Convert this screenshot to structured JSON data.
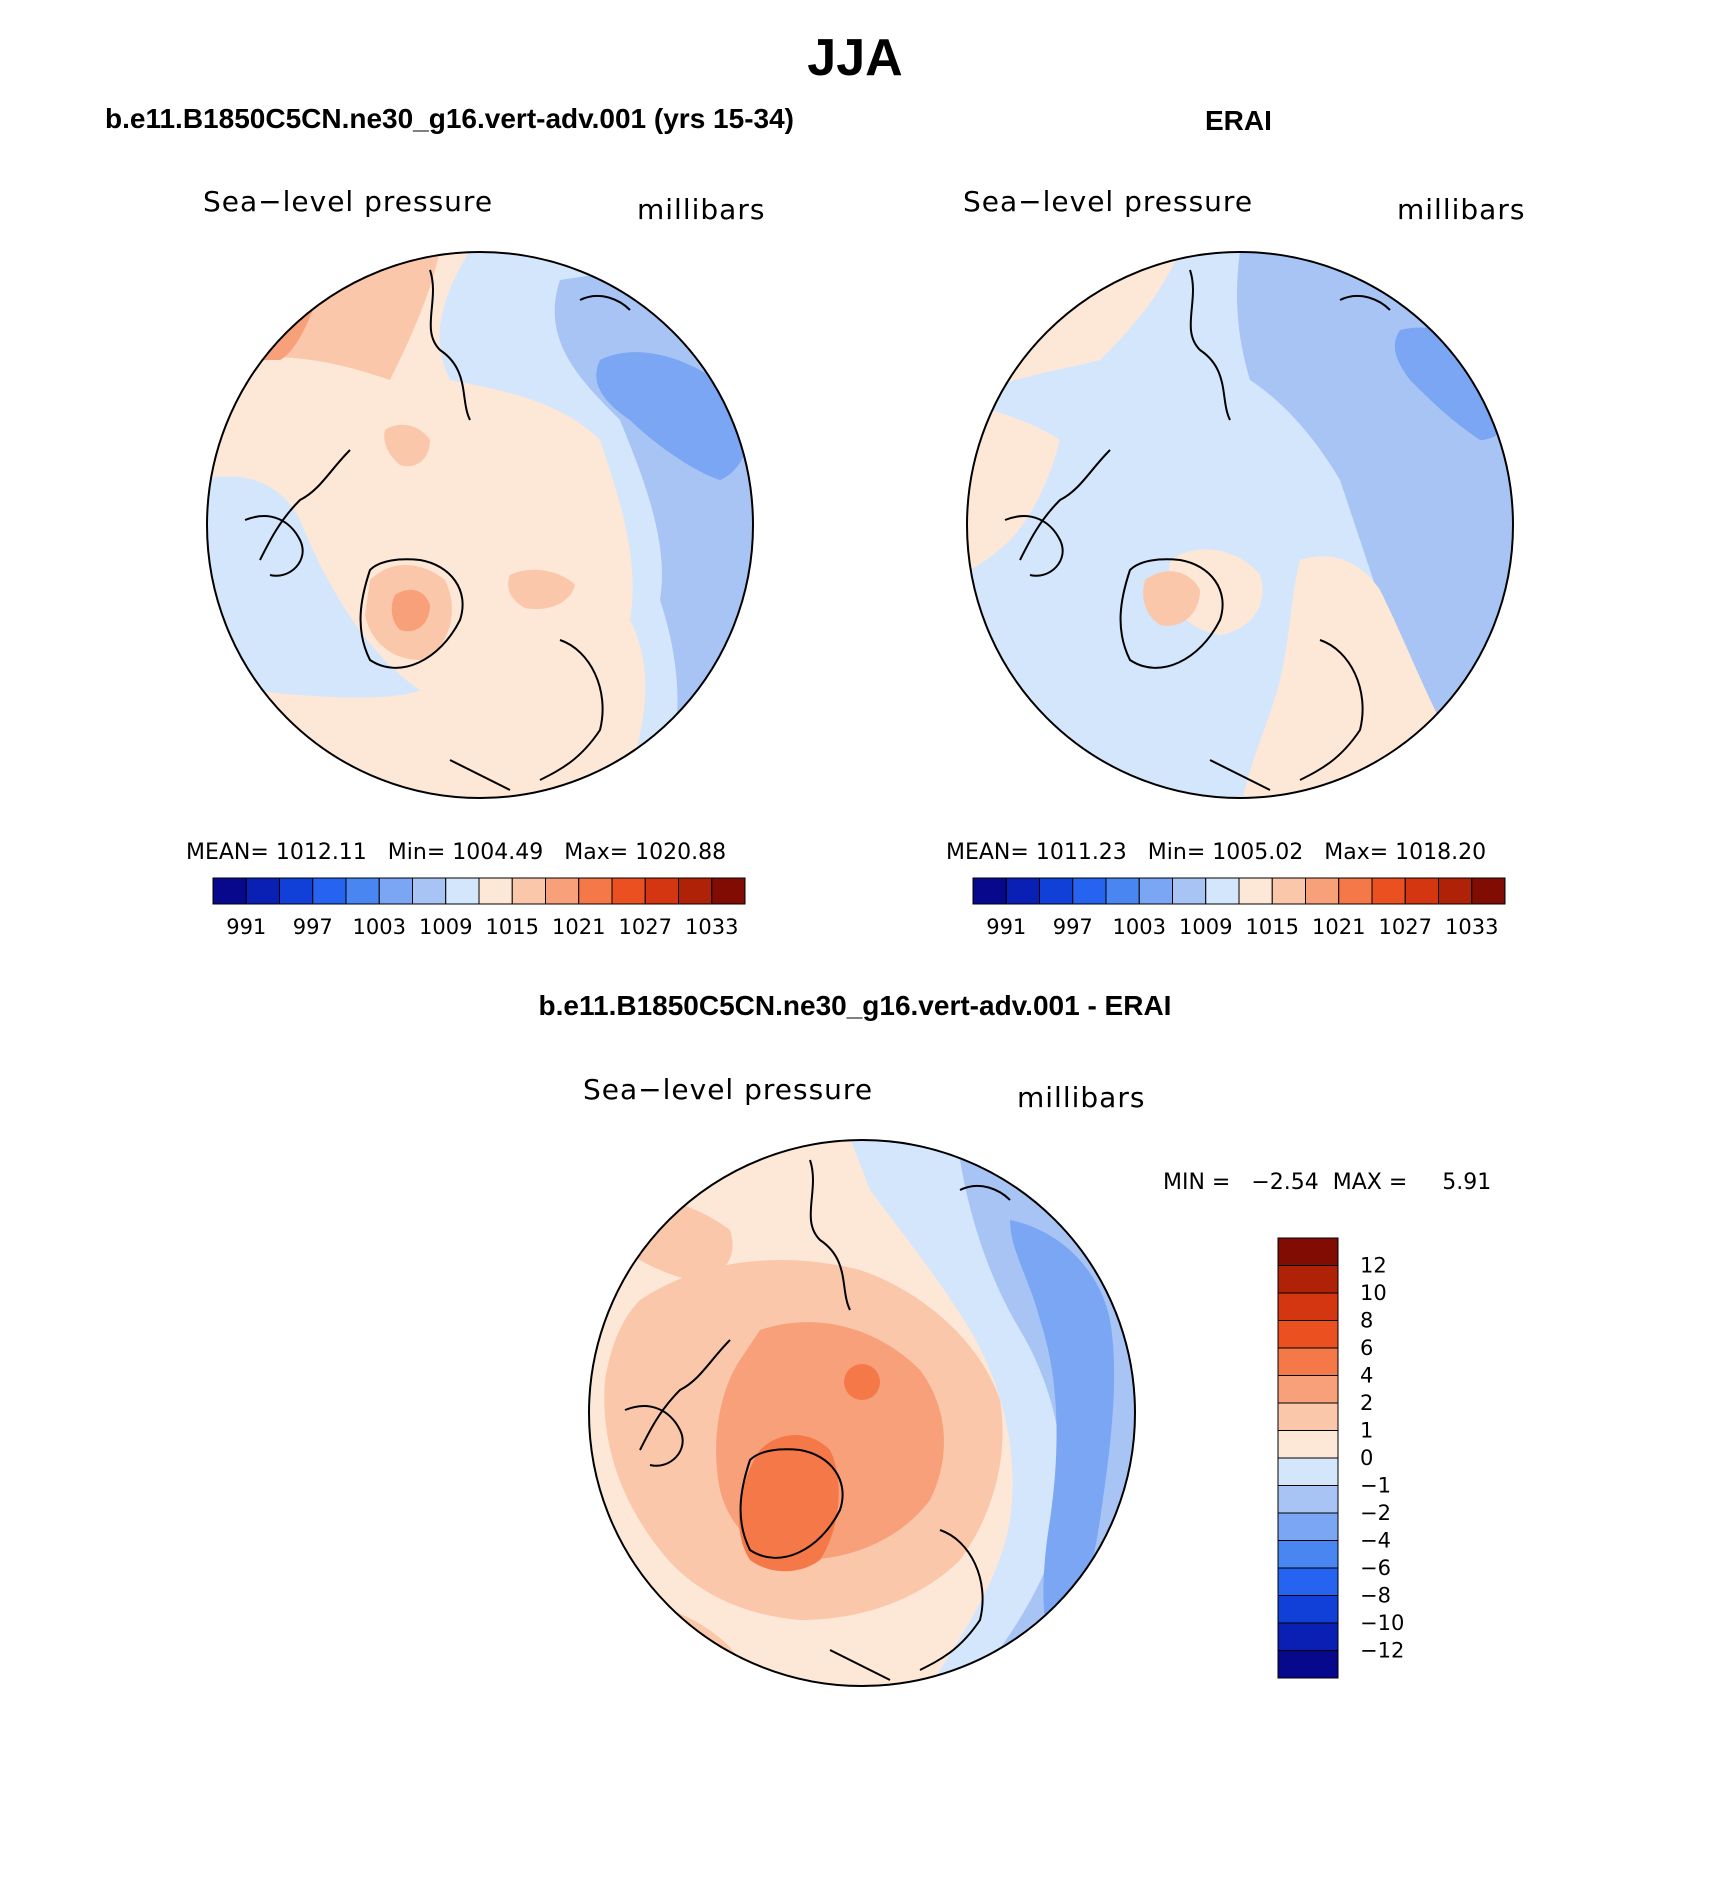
{
  "main_title": "JJA",
  "panels": {
    "model": {
      "title": "b.e11.B1850C5CN.ne30_g16.vert-adv.001 (yrs 15-34)",
      "var_label": "Sea−level pressure",
      "units": "millibars",
      "stats": {
        "mean_label": "MEAN=",
        "mean": "1012.11",
        "min_label": "Min=",
        "min": "1004.49",
        "max_label": "Max=",
        "max": "1020.88"
      }
    },
    "obs": {
      "title": "ERAI",
      "var_label": "Sea−level pressure",
      "units": "millibars",
      "stats": {
        "mean_label": "MEAN=",
        "mean": "1011.23",
        "min_label": "Min=",
        "min": "1005.02",
        "max_label": "Max=",
        "max": "1018.20"
      }
    },
    "diff": {
      "title": "b.e11.B1850C5CN.ne30_g16.vert-adv.001 - ERAI",
      "var_label": "Sea−level pressure",
      "units": "millibars",
      "minmax": {
        "min_label": "MIN =",
        "min": "−2.54",
        "max_label": "MAX =",
        "max": "5.91"
      }
    }
  },
  "chart_data": [
    {
      "type": "heatmap",
      "projection": "north-polar-stereographic",
      "title": "b.e11.B1850C5CN.ne30_g16.vert-adv.001 (yrs 15-34)",
      "variable": "Sea-level pressure",
      "units": "millibars",
      "mean": 1012.11,
      "min": 1004.49,
      "max": 1020.88,
      "colorbar_ticks": [
        "991",
        "997",
        "1003",
        "1009",
        "1015",
        "1021",
        "1027",
        "1033"
      ],
      "colorbar_orientation": "horizontal"
    },
    {
      "type": "heatmap",
      "projection": "north-polar-stereographic",
      "title": "ERAI",
      "variable": "Sea-level pressure",
      "units": "millibars",
      "mean": 1011.23,
      "min": 1005.02,
      "max": 1018.2,
      "colorbar_ticks": [
        "991",
        "997",
        "1003",
        "1009",
        "1015",
        "1021",
        "1027",
        "1033"
      ],
      "colorbar_orientation": "horizontal"
    },
    {
      "type": "heatmap",
      "projection": "north-polar-stereographic",
      "title": "b.e11.B1850C5CN.ne30_g16.vert-adv.001 - ERAI",
      "variable": "Sea-level pressure",
      "units": "millibars",
      "min": -2.54,
      "max": 5.91,
      "colorbar_ticks": [
        "12",
        "10",
        "8",
        "6",
        "4",
        "2",
        "1",
        "0",
        "−1",
        "−2",
        "−4",
        "−6",
        "−8",
        "−10",
        "−12"
      ],
      "colorbar_orientation": "vertical"
    }
  ],
  "palette": [
    "#08088c",
    "#0a1fb4",
    "#1040d8",
    "#2563f0",
    "#4a86f2",
    "#7aa6f3",
    "#a8c4f5",
    "#d4e6fb",
    "#fde8d8",
    "#fbc7aa",
    "#f8a07a",
    "#f47848",
    "#ea5020",
    "#d33610",
    "#b02208",
    "#800c04"
  ],
  "diff_palette": [
    "#800c04",
    "#b02208",
    "#d33610",
    "#ea5020",
    "#f47848",
    "#f8a07a",
    "#fbc7aa",
    "#fde8d8",
    "#d4e6fb",
    "#a8c4f5",
    "#7aa6f3",
    "#4a86f2",
    "#2563f0",
    "#1040d8",
    "#0a1fb4",
    "#08088c"
  ]
}
